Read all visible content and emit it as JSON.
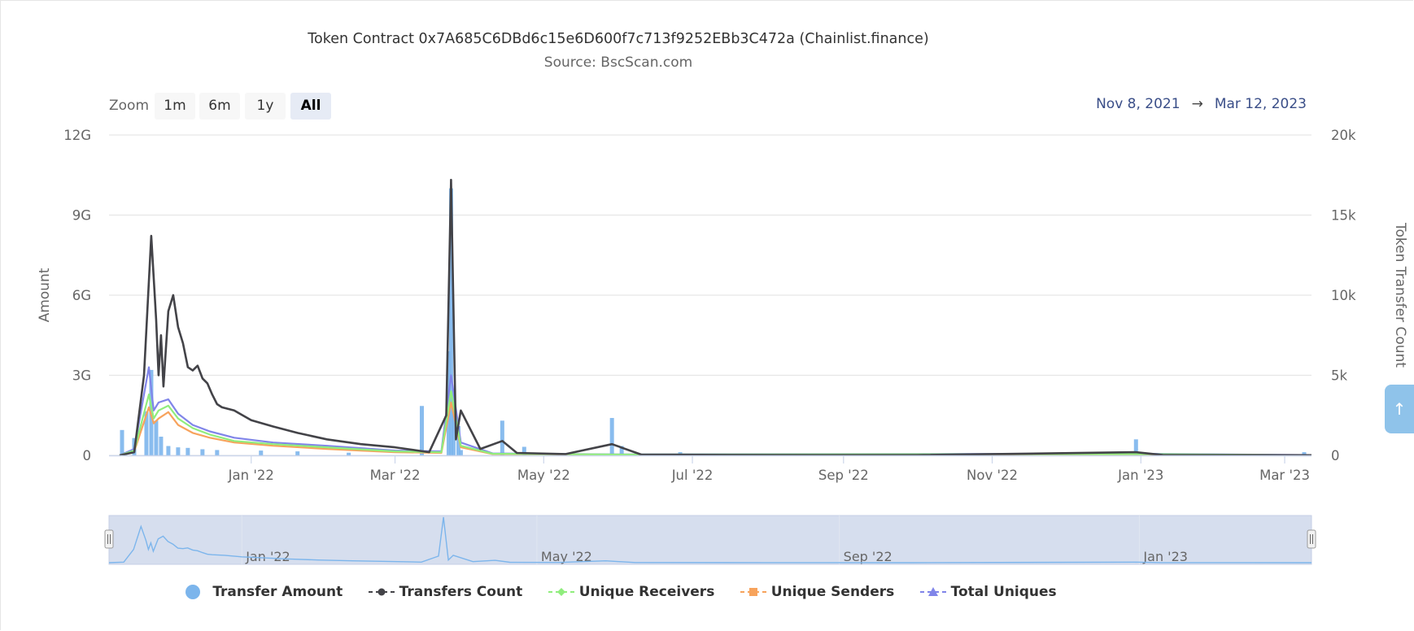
{
  "chart_data": {
    "type": "bar+line",
    "title": "Token Contract 0x7A685C6DBd6c15e6D600f7c713f9252EBb3C472a (Chainlist.finance)",
    "subtitle": "Source: BscScan.com",
    "y_left": {
      "label": "Amount",
      "ticks": [
        "0",
        "3G",
        "6G",
        "9G",
        "12G"
      ],
      "range": [
        0,
        12000000000
      ]
    },
    "y_right": {
      "label": "Token Transfer Count",
      "ticks": [
        "0",
        "5k",
        "10k",
        "15k",
        "20k"
      ],
      "range": [
        0,
        20000
      ]
    },
    "x_range": [
      "2021-11-08",
      "2023-03-12"
    ],
    "x_ticks": [
      "Jan '22",
      "Mar '22",
      "May '22",
      "Jul '22",
      "Sep '22",
      "Nov '22",
      "Jan '23",
      "Mar '23"
    ],
    "navigator_ticks": [
      "Jan '22",
      "May '22",
      "Sep '22",
      "Jan '23"
    ],
    "grid": true,
    "legend_position": "bottom",
    "series": [
      {
        "name": "Transfer Amount",
        "type": "bar",
        "color": "#7cb5ec",
        "axis": "left",
        "x": [
          "2021-11-09",
          "2021-11-14",
          "2021-11-19",
          "2021-11-21",
          "2021-11-23",
          "2021-11-25",
          "2021-11-28",
          "2021-12-02",
          "2021-12-06",
          "2021-12-12",
          "2021-12-18",
          "2022-01-05",
          "2022-01-20",
          "2022-02-10",
          "2022-03-12",
          "2022-03-23",
          "2022-03-24",
          "2022-03-25",
          "2022-03-27",
          "2022-03-28",
          "2022-04-14",
          "2022-04-23",
          "2022-05-29",
          "2022-06-02",
          "2022-06-26",
          "2022-12-30",
          "2023-03-09"
        ],
        "values": [
          950000000,
          650000000,
          1650000000,
          3200000000,
          1300000000,
          700000000,
          350000000,
          300000000,
          280000000,
          230000000,
          200000000,
          180000000,
          150000000,
          100000000,
          1850000000,
          3900000000,
          10000000000,
          2300000000,
          1100000000,
          200000000,
          1300000000,
          320000000,
          1400000000,
          350000000,
          120000000,
          600000000,
          120000000
        ]
      },
      {
        "name": "Transfers Count",
        "type": "line",
        "color": "#434348",
        "axis": "right",
        "x": [
          "2021-11-08",
          "2021-11-14",
          "2021-11-18",
          "2021-11-21",
          "2021-11-23",
          "2021-11-24",
          "2021-11-25",
          "2021-11-26",
          "2021-11-28",
          "2021-11-30",
          "2021-12-02",
          "2021-12-04",
          "2021-12-06",
          "2021-12-08",
          "2021-12-10",
          "2021-12-12",
          "2021-12-14",
          "2021-12-16",
          "2021-12-18",
          "2021-12-20",
          "2021-12-25",
          "2022-01-01",
          "2022-01-10",
          "2022-01-20",
          "2022-02-01",
          "2022-02-15",
          "2022-03-01",
          "2022-03-15",
          "2022-03-22",
          "2022-03-24",
          "2022-03-26",
          "2022-03-28",
          "2022-04-05",
          "2022-04-14",
          "2022-04-20",
          "2022-05-10",
          "2022-05-29",
          "2022-06-10",
          "2022-08-01",
          "2022-10-01",
          "2022-12-30",
          "2023-01-10",
          "2023-03-12"
        ],
        "values": [
          0,
          200,
          5000,
          13700,
          8500,
          5000,
          7500,
          4300,
          9000,
          10000,
          8000,
          7000,
          5500,
          5300,
          5600,
          4800,
          4500,
          3800,
          3200,
          3000,
          2800,
          2200,
          1800,
          1400,
          1000,
          700,
          500,
          200,
          2500,
          17200,
          1000,
          2800,
          400,
          900,
          150,
          80,
          700,
          50,
          20,
          15,
          200,
          20,
          10
        ]
      },
      {
        "name": "Unique Receivers",
        "type": "line",
        "color": "#90ed7d",
        "axis": "right",
        "x": [
          "2021-11-08",
          "2021-11-14",
          "2021-11-20",
          "2021-11-22",
          "2021-11-24",
          "2021-11-28",
          "2021-12-02",
          "2021-12-08",
          "2021-12-15",
          "2021-12-25",
          "2022-01-10",
          "2022-02-01",
          "2022-03-01",
          "2022-03-20",
          "2022-03-24",
          "2022-03-28",
          "2022-04-10",
          "2022-06-01",
          "2022-12-30",
          "2023-03-12"
        ],
        "values": [
          0,
          300,
          3800,
          2300,
          2800,
          3100,
          2300,
          1700,
          1300,
          900,
          700,
          500,
          250,
          200,
          4000,
          600,
          100,
          50,
          80,
          10
        ]
      },
      {
        "name": "Unique Senders",
        "type": "line",
        "color": "#f7a35c",
        "axis": "right",
        "x": [
          "2021-11-08",
          "2021-11-14",
          "2021-11-20",
          "2021-11-22",
          "2021-11-24",
          "2021-11-28",
          "2021-12-02",
          "2021-12-08",
          "2021-12-15",
          "2021-12-25",
          "2022-01-10",
          "2022-02-01",
          "2022-03-01",
          "2022-03-20",
          "2022-03-24",
          "2022-03-28",
          "2022-04-10",
          "2022-06-01",
          "2022-12-30",
          "2023-03-12"
        ],
        "values": [
          0,
          250,
          3000,
          2000,
          2300,
          2700,
          1900,
          1400,
          1100,
          800,
          600,
          400,
          200,
          150,
          3300,
          500,
          80,
          40,
          60,
          10
        ]
      },
      {
        "name": "Total Uniques",
        "type": "line",
        "color": "#8085e9",
        "axis": "right",
        "x": [
          "2021-11-08",
          "2021-11-14",
          "2021-11-20",
          "2021-11-22",
          "2021-11-24",
          "2021-11-28",
          "2021-12-02",
          "2021-12-08",
          "2021-12-15",
          "2021-12-25",
          "2022-01-10",
          "2022-02-01",
          "2022-03-01",
          "2022-03-20",
          "2022-03-24",
          "2022-03-28",
          "2022-04-10",
          "2022-06-01",
          "2022-12-30",
          "2023-03-12"
        ],
        "values": [
          0,
          400,
          5500,
          2800,
          3300,
          3500,
          2600,
          1900,
          1500,
          1100,
          800,
          600,
          300,
          250,
          5000,
          800,
          120,
          60,
          100,
          20
        ]
      }
    ]
  },
  "ui": {
    "zoom_label": "Zoom",
    "zoom_buttons": [
      "1m",
      "6m",
      "1y",
      "All"
    ],
    "range_from": "Nov 8, 2021",
    "range_arrow": "→",
    "range_to": "Mar 12, 2023",
    "scroll_icon": "arrow-up-icon"
  }
}
